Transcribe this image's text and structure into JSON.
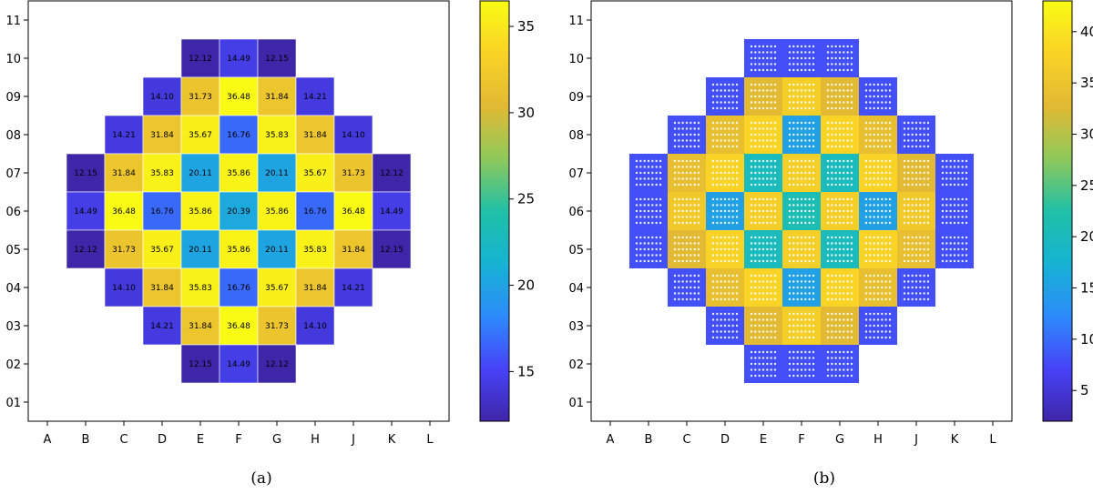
{
  "chart_data": [
    {
      "type": "heatmap",
      "caption": "(a)",
      "x_categories": [
        "A",
        "B",
        "C",
        "D",
        "E",
        "F",
        "G",
        "H",
        "J",
        "K",
        "L"
      ],
      "y_categories": [
        "01",
        "02",
        "03",
        "04",
        "05",
        "06",
        "07",
        "08",
        "09",
        "10",
        "11"
      ],
      "colorbar": {
        "ticks": [
          15,
          20,
          25,
          30,
          35
        ],
        "range": [
          12.12,
          36.48
        ]
      },
      "grid": false,
      "cells": [
        {
          "x": "E",
          "y": "10",
          "value": 12.12
        },
        {
          "x": "F",
          "y": "10",
          "value": 14.49
        },
        {
          "x": "G",
          "y": "10",
          "value": 12.15
        },
        {
          "x": "D",
          "y": "09",
          "value": 14.1
        },
        {
          "x": "E",
          "y": "09",
          "value": 31.73
        },
        {
          "x": "F",
          "y": "09",
          "value": 36.48
        },
        {
          "x": "G",
          "y": "09",
          "value": 31.84
        },
        {
          "x": "H",
          "y": "09",
          "value": 14.21
        },
        {
          "x": "C",
          "y": "08",
          "value": 14.21
        },
        {
          "x": "D",
          "y": "08",
          "value": 31.84
        },
        {
          "x": "E",
          "y": "08",
          "value": 35.67
        },
        {
          "x": "F",
          "y": "08",
          "value": 16.76
        },
        {
          "x": "G",
          "y": "08",
          "value": 35.83
        },
        {
          "x": "H",
          "y": "08",
          "value": 31.84
        },
        {
          "x": "J",
          "y": "08",
          "value": 14.1
        },
        {
          "x": "B",
          "y": "07",
          "value": 12.15
        },
        {
          "x": "C",
          "y": "07",
          "value": 31.84
        },
        {
          "x": "D",
          "y": "07",
          "value": 35.83
        },
        {
          "x": "E",
          "y": "07",
          "value": 20.11
        },
        {
          "x": "F",
          "y": "07",
          "value": 35.86
        },
        {
          "x": "G",
          "y": "07",
          "value": 20.11
        },
        {
          "x": "H",
          "y": "07",
          "value": 35.67
        },
        {
          "x": "J",
          "y": "07",
          "value": 31.73
        },
        {
          "x": "K",
          "y": "07",
          "value": 12.12
        },
        {
          "x": "B",
          "y": "06",
          "value": 14.49
        },
        {
          "x": "C",
          "y": "06",
          "value": 36.48
        },
        {
          "x": "D",
          "y": "06",
          "value": 16.76
        },
        {
          "x": "E",
          "y": "06",
          "value": 35.86
        },
        {
          "x": "F",
          "y": "06",
          "value": 20.39
        },
        {
          "x": "G",
          "y": "06",
          "value": 35.86
        },
        {
          "x": "H",
          "y": "06",
          "value": 16.76
        },
        {
          "x": "J",
          "y": "06",
          "value": 36.48
        },
        {
          "x": "K",
          "y": "06",
          "value": 14.49
        },
        {
          "x": "B",
          "y": "05",
          "value": 12.12
        },
        {
          "x": "C",
          "y": "05",
          "value": 31.73
        },
        {
          "x": "D",
          "y": "05",
          "value": 35.67
        },
        {
          "x": "E",
          "y": "05",
          "value": 20.11
        },
        {
          "x": "F",
          "y": "05",
          "value": 35.86
        },
        {
          "x": "G",
          "y": "05",
          "value": 20.11
        },
        {
          "x": "H",
          "y": "05",
          "value": 35.83
        },
        {
          "x": "J",
          "y": "05",
          "value": 31.84
        },
        {
          "x": "K",
          "y": "05",
          "value": 12.15
        },
        {
          "x": "C",
          "y": "04",
          "value": 14.1
        },
        {
          "x": "D",
          "y": "04",
          "value": 31.84
        },
        {
          "x": "E",
          "y": "04",
          "value": 35.83
        },
        {
          "x": "F",
          "y": "04",
          "value": 16.76
        },
        {
          "x": "G",
          "y": "04",
          "value": 35.67
        },
        {
          "x": "H",
          "y": "04",
          "value": 31.84
        },
        {
          "x": "J",
          "y": "04",
          "value": 14.21
        },
        {
          "x": "D",
          "y": "03",
          "value": 14.21
        },
        {
          "x": "E",
          "y": "03",
          "value": 31.84
        },
        {
          "x": "F",
          "y": "03",
          "value": 36.48
        },
        {
          "x": "G",
          "y": "03",
          "value": 31.73
        },
        {
          "x": "H",
          "y": "03",
          "value": 14.1
        },
        {
          "x": "E",
          "y": "02",
          "value": 12.15
        },
        {
          "x": "F",
          "y": "02",
          "value": 14.49
        },
        {
          "x": "G",
          "y": "02",
          "value": 12.12
        }
      ]
    },
    {
      "type": "heatmap",
      "caption": "(b)",
      "x_categories": [
        "A",
        "B",
        "C",
        "D",
        "E",
        "F",
        "G",
        "H",
        "J",
        "K",
        "L"
      ],
      "y_categories": [
        "01",
        "02",
        "03",
        "04",
        "05",
        "06",
        "07",
        "08",
        "09",
        "10",
        "11"
      ],
      "colorbar": {
        "ticks": [
          5,
          10,
          15,
          20,
          25,
          30,
          35,
          40
        ],
        "range": [
          2,
          43
        ]
      },
      "grid": false,
      "cells": [
        {
          "x": "E",
          "y": "10",
          "value": 8
        },
        {
          "x": "F",
          "y": "10",
          "value": 8
        },
        {
          "x": "G",
          "y": "10",
          "value": 8
        },
        {
          "x": "D",
          "y": "09",
          "value": 8
        },
        {
          "x": "E",
          "y": "09",
          "value": 33
        },
        {
          "x": "F",
          "y": "09",
          "value": 37
        },
        {
          "x": "G",
          "y": "09",
          "value": 33
        },
        {
          "x": "H",
          "y": "09",
          "value": 8
        },
        {
          "x": "C",
          "y": "08",
          "value": 8
        },
        {
          "x": "D",
          "y": "08",
          "value": 34
        },
        {
          "x": "E",
          "y": "08",
          "value": 38
        },
        {
          "x": "F",
          "y": "08",
          "value": 15
        },
        {
          "x": "G",
          "y": "08",
          "value": 38
        },
        {
          "x": "H",
          "y": "08",
          "value": 34
        },
        {
          "x": "J",
          "y": "08",
          "value": 8
        },
        {
          "x": "B",
          "y": "07",
          "value": 8
        },
        {
          "x": "C",
          "y": "07",
          "value": 34
        },
        {
          "x": "D",
          "y": "07",
          "value": 38
        },
        {
          "x": "E",
          "y": "07",
          "value": 20
        },
        {
          "x": "F",
          "y": "07",
          "value": 37
        },
        {
          "x": "G",
          "y": "07",
          "value": 20
        },
        {
          "x": "H",
          "y": "07",
          "value": 38
        },
        {
          "x": "J",
          "y": "07",
          "value": 33
        },
        {
          "x": "K",
          "y": "07",
          "value": 8
        },
        {
          "x": "B",
          "y": "06",
          "value": 8
        },
        {
          "x": "C",
          "y": "06",
          "value": 36
        },
        {
          "x": "D",
          "y": "06",
          "value": 15
        },
        {
          "x": "E",
          "y": "06",
          "value": 37
        },
        {
          "x": "F",
          "y": "06",
          "value": 21
        },
        {
          "x": "G",
          "y": "06",
          "value": 37
        },
        {
          "x": "H",
          "y": "06",
          "value": 15
        },
        {
          "x": "J",
          "y": "06",
          "value": 36
        },
        {
          "x": "K",
          "y": "06",
          "value": 8
        },
        {
          "x": "B",
          "y": "05",
          "value": 8
        },
        {
          "x": "C",
          "y": "05",
          "value": 33
        },
        {
          "x": "D",
          "y": "05",
          "value": 38
        },
        {
          "x": "E",
          "y": "05",
          "value": 20
        },
        {
          "x": "F",
          "y": "05",
          "value": 37
        },
        {
          "x": "G",
          "y": "05",
          "value": 20
        },
        {
          "x": "H",
          "y": "05",
          "value": 38
        },
        {
          "x": "J",
          "y": "05",
          "value": 34
        },
        {
          "x": "K",
          "y": "05",
          "value": 8
        },
        {
          "x": "C",
          "y": "04",
          "value": 8
        },
        {
          "x": "D",
          "y": "04",
          "value": 34
        },
        {
          "x": "E",
          "y": "04",
          "value": 38
        },
        {
          "x": "F",
          "y": "04",
          "value": 15
        },
        {
          "x": "G",
          "y": "04",
          "value": 38
        },
        {
          "x": "H",
          "y": "04",
          "value": 34
        },
        {
          "x": "J",
          "y": "04",
          "value": 8
        },
        {
          "x": "D",
          "y": "03",
          "value": 8
        },
        {
          "x": "E",
          "y": "03",
          "value": 33
        },
        {
          "x": "F",
          "y": "03",
          "value": 37
        },
        {
          "x": "G",
          "y": "03",
          "value": 33
        },
        {
          "x": "H",
          "y": "03",
          "value": 8
        },
        {
          "x": "E",
          "y": "02",
          "value": 8
        },
        {
          "x": "F",
          "y": "02",
          "value": 8
        },
        {
          "x": "G",
          "y": "02",
          "value": 8
        }
      ]
    }
  ],
  "colormap": [
    "#3e26a8",
    "#4743f8",
    "#2d8bfa",
    "#16b3d3",
    "#20c0a7",
    "#8fc95a",
    "#e2b934",
    "#f9d326",
    "#f9fb15"
  ]
}
